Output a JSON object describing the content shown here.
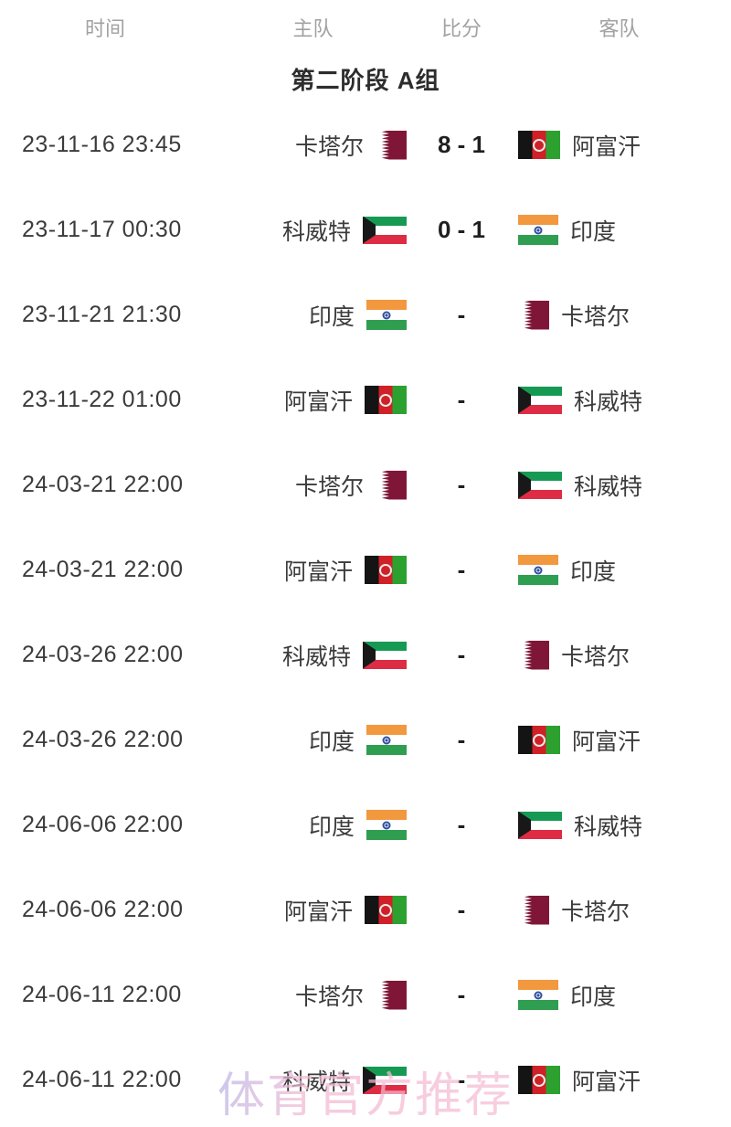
{
  "table": {
    "columns": [
      "时间",
      "主队",
      "比分",
      "客队"
    ],
    "section_title": "第二阶段 A组"
  },
  "matches": [
    {
      "time": "23-11-16 23:45",
      "home": "卡塔尔",
      "home_flag": "qatar",
      "score": "8 - 1",
      "away": "阿富汗",
      "away_flag": "afghanistan"
    },
    {
      "time": "23-11-17 00:30",
      "home": "科威特",
      "home_flag": "kuwait",
      "score": "0 - 1",
      "away": "印度",
      "away_flag": "india"
    },
    {
      "time": "23-11-21 21:30",
      "home": "印度",
      "home_flag": "india",
      "score": "-",
      "away": "卡塔尔",
      "away_flag": "qatar"
    },
    {
      "time": "23-11-22 01:00",
      "home": "阿富汗",
      "home_flag": "afghanistan",
      "score": "-",
      "away": "科威特",
      "away_flag": "kuwait"
    },
    {
      "time": "24-03-21 22:00",
      "home": "卡塔尔",
      "home_flag": "qatar",
      "score": "-",
      "away": "科威特",
      "away_flag": "kuwait"
    },
    {
      "time": "24-03-21 22:00",
      "home": "阿富汗",
      "home_flag": "afghanistan",
      "score": "-",
      "away": "印度",
      "away_flag": "india"
    },
    {
      "time": "24-03-26 22:00",
      "home": "科威特",
      "home_flag": "kuwait",
      "score": "-",
      "away": "卡塔尔",
      "away_flag": "qatar"
    },
    {
      "time": "24-03-26 22:00",
      "home": "印度",
      "home_flag": "india",
      "score": "-",
      "away": "阿富汗",
      "away_flag": "afghanistan"
    },
    {
      "time": "24-06-06 22:00",
      "home": "印度",
      "home_flag": "india",
      "score": "-",
      "away": "科威特",
      "away_flag": "kuwait"
    },
    {
      "time": "24-06-06 22:00",
      "home": "阿富汗",
      "home_flag": "afghanistan",
      "score": "-",
      "away": "卡塔尔",
      "away_flag": "qatar"
    },
    {
      "time": "24-06-11 22:00",
      "home": "卡塔尔",
      "home_flag": "qatar",
      "score": "-",
      "away": "印度",
      "away_flag": "india"
    },
    {
      "time": "24-06-11 22:00",
      "home": "科威特",
      "home_flag": "kuwait",
      "score": "-",
      "away": "阿富汗",
      "away_flag": "afghanistan"
    }
  ],
  "watermark": "体育官方推荐",
  "colors": {
    "header_text": "#a2a2a2",
    "body_text": "#3b3b3b",
    "score_text": "#1f1f1f",
    "qatar_maroon": "#7f1637",
    "afghanistan_red": "#cf2127",
    "afghanistan_green": "#2da12f",
    "kuwait_green": "#169a53",
    "kuwait_red": "#dd2c44",
    "india_saffron": "#f2983e",
    "india_green": "#2f9e51",
    "india_navy": "#2f4fa2",
    "watermark_pink": "#f2b9d2"
  }
}
